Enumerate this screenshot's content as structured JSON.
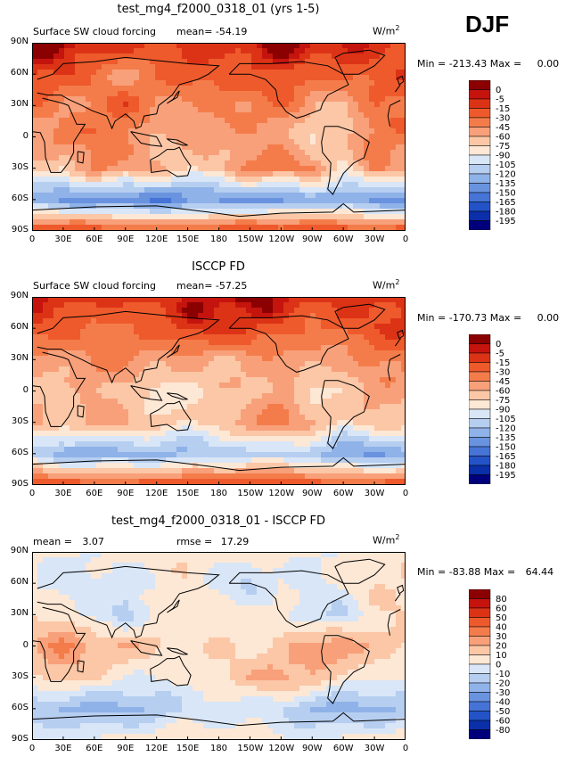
{
  "season": "DJF",
  "units_text": "W/m",
  "units_sup": "2",
  "panels": [
    {
      "title": "test_mg4_f2000_0318_01 (yrs 1-5)",
      "field_label": "Surface SW cloud forcing",
      "mean_label": "mean=",
      "mean_value": "-54.19",
      "min_label": "Min =",
      "min_value": "-213.43",
      "max_label": "Max =",
      "max_value": "0.00",
      "colorbar_labels": [
        "0",
        "-5",
        "-15",
        "-30",
        "-45",
        "-60",
        "-75",
        "-90",
        "-105",
        "-120",
        "-135",
        "-150",
        "-165",
        "-180",
        "-195"
      ],
      "colorbar_colors": [
        "#8b0000",
        "#c5140e",
        "#dc3316",
        "#ee5a2c",
        "#f47c4b",
        "#f8a07a",
        "#fbc7a6",
        "#fde7d5",
        "#d8e6f7",
        "#b6cef0",
        "#8fb2e8",
        "#6a93df",
        "#4673d6",
        "#2453c8",
        "#0a2fa8",
        "#00007c"
      ],
      "grid": {
        "lon_vals": [
          0,
          30,
          60,
          90,
          120,
          150,
          180,
          210,
          240,
          270,
          300,
          330,
          360
        ],
        "lat_vals": [
          90,
          60,
          30,
          0,
          -30,
          -60,
          -90
        ],
        "base": [
          [
            -5,
            -5,
            -5,
            -5,
            -5,
            -5,
            -5,
            -5,
            -5,
            -5,
            -5,
            -5,
            -5
          ],
          [
            -15,
            -15,
            -30,
            -45,
            -30,
            -15,
            -30,
            -30,
            -15,
            -30,
            -15,
            -15,
            -15
          ],
          [
            -30,
            -45,
            -30,
            -15,
            -45,
            -60,
            -45,
            -45,
            -30,
            -45,
            -60,
            -30,
            -30
          ],
          [
            -45,
            -30,
            -30,
            -45,
            -75,
            -60,
            -60,
            -45,
            -45,
            -75,
            -60,
            -45,
            -45
          ],
          [
            -60,
            -75,
            -45,
            -60,
            -60,
            -75,
            -60,
            -30,
            -30,
            -45,
            -90,
            -45,
            -60
          ],
          [
            -135,
            -150,
            -150,
            -150,
            -150,
            -135,
            -135,
            -135,
            -150,
            -135,
            -135,
            -150,
            -135
          ],
          [
            -15,
            -15,
            -15,
            -15,
            -15,
            -15,
            -15,
            -15,
            -15,
            -15,
            -15,
            -15,
            -15
          ]
        ]
      }
    },
    {
      "title": "ISCCP FD",
      "field_label": "Surface SW cloud forcing",
      "mean_label": "mean=",
      "mean_value": "-57.25",
      "min_label": "Min =",
      "min_value": "-170.73",
      "max_label": "Max =",
      "max_value": "0.00",
      "colorbar_labels": [
        "0",
        "-5",
        "-15",
        "-30",
        "-45",
        "-60",
        "-75",
        "-90",
        "-105",
        "-120",
        "-135",
        "-150",
        "-165",
        "-180",
        "-195"
      ],
      "colorbar_colors": [
        "#8b0000",
        "#c5140e",
        "#dc3316",
        "#ee5a2c",
        "#f47c4b",
        "#f8a07a",
        "#fbc7a6",
        "#fde7d5",
        "#d8e6f7",
        "#b6cef0",
        "#8fb2e8",
        "#6a93df",
        "#4673d6",
        "#2453c8",
        "#0a2fa8",
        "#00007c"
      ],
      "grid": {
        "lon_vals": [
          0,
          30,
          60,
          90,
          120,
          150,
          180,
          210,
          240,
          270,
          300,
          330,
          360
        ],
        "lat_vals": [
          90,
          60,
          30,
          0,
          -30,
          -60,
          -90
        ],
        "base": [
          [
            -5,
            -5,
            -5,
            -5,
            -5,
            -5,
            -5,
            -5,
            -5,
            -5,
            -5,
            -5,
            -5
          ],
          [
            -15,
            -15,
            -30,
            -30,
            -30,
            -15,
            -15,
            -15,
            -15,
            -30,
            -15,
            -15,
            -15
          ],
          [
            -45,
            -45,
            -45,
            -45,
            -60,
            -60,
            -60,
            -45,
            -45,
            -45,
            -60,
            -45,
            -45
          ],
          [
            -60,
            -75,
            -60,
            -75,
            -90,
            -75,
            -60,
            -60,
            -45,
            -90,
            -75,
            -60,
            -60
          ],
          [
            -60,
            -75,
            -60,
            -60,
            -60,
            -75,
            -60,
            -45,
            -45,
            -60,
            -90,
            -60,
            -60
          ],
          [
            -120,
            -135,
            -135,
            -120,
            -120,
            -120,
            -120,
            -120,
            -120,
            -120,
            -135,
            -135,
            -120
          ],
          [
            -15,
            -15,
            -15,
            -15,
            -15,
            -15,
            -15,
            -15,
            -15,
            -15,
            -15,
            -15,
            -15
          ]
        ]
      }
    },
    {
      "title": "test_mg4_f2000_0318_01 - ISCCP FD",
      "mean_label": "mean =",
      "mean_value": "3.07",
      "rmse_label": "rmse =",
      "rmse_value": "17.29",
      "min_label": "Min =",
      "min_value": "-83.88",
      "max_label": "Max =",
      "max_value": "64.44",
      "colorbar_labels": [
        "80",
        "60",
        "50",
        "40",
        "30",
        "20",
        "10",
        "0",
        "-10",
        "-20",
        "-30",
        "-40",
        "-50",
        "-60",
        "-80"
      ],
      "colorbar_colors": [
        "#8b0000",
        "#c5140e",
        "#dc3316",
        "#ee5a2c",
        "#f47c4b",
        "#f8a07a",
        "#fbc7a6",
        "#fde7d5",
        "#d8e6f7",
        "#b6cef0",
        "#8fb2e8",
        "#6a93df",
        "#4673d6",
        "#2453c8",
        "#0a2fa8",
        "#00007c"
      ],
      "grid": {
        "lon_vals": [
          0,
          30,
          60,
          90,
          120,
          150,
          180,
          210,
          240,
          270,
          300,
          330,
          360
        ],
        "lat_vals": [
          90,
          60,
          30,
          0,
          -30,
          -60,
          -90
        ],
        "base": [
          [
            5,
            5,
            5,
            5,
            5,
            5,
            5,
            5,
            5,
            5,
            5,
            5,
            5
          ],
          [
            5,
            -5,
            -5,
            -10,
            -5,
            5,
            -5,
            -10,
            5,
            -5,
            5,
            5,
            5
          ],
          [
            10,
            5,
            -10,
            -20,
            5,
            5,
            10,
            10,
            5,
            -10,
            -20,
            5,
            10
          ],
          [
            15,
            30,
            15,
            20,
            15,
            10,
            15,
            5,
            10,
            20,
            30,
            15,
            15
          ],
          [
            5,
            15,
            10,
            5,
            5,
            5,
            5,
            15,
            20,
            20,
            5,
            10,
            5
          ],
          [
            -20,
            -20,
            -20,
            -20,
            -20,
            -10,
            -10,
            -10,
            -10,
            -20,
            -20,
            -20,
            -20
          ],
          [
            5,
            5,
            5,
            5,
            5,
            5,
            5,
            5,
            5,
            5,
            5,
            5,
            5
          ]
        ]
      }
    }
  ],
  "lat_ticks": [
    "90N",
    "60N",
    "30N",
    "0",
    "30S",
    "60S",
    "90S"
  ],
  "lon_ticks": [
    "0",
    "30E",
    "60E",
    "90E",
    "120E",
    "150E",
    "180",
    "150W",
    "120W",
    "90W",
    "60W",
    "30W",
    "0"
  ]
}
